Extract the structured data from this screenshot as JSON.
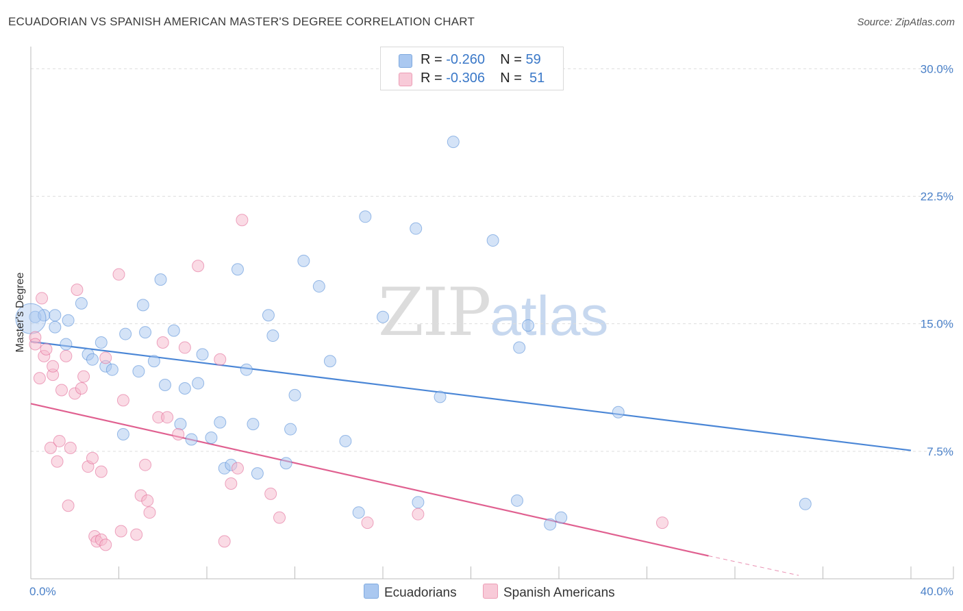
{
  "title": "ECUADORIAN VS SPANISH AMERICAN MASTER'S DEGREE CORRELATION CHART",
  "source": "Source: ZipAtlas.com",
  "watermark": {
    "zip": "ZIP",
    "atlas": "atlas"
  },
  "legend": {
    "rows": [
      {
        "r_label": "R =",
        "r_value": "-0.260",
        "n_label": "N =",
        "n_value": "59",
        "color": "#aac8f0"
      },
      {
        "r_label": "R =",
        "r_value": "-0.306",
        "n_label": "N =",
        "n_value": "51",
        "color": "#f5b8cb"
      }
    ]
  },
  "bottom_legend": [
    {
      "label": "Ecuadorians",
      "color": "#aac8f0"
    },
    {
      "label": "Spanish Americans",
      "color": "#f5b8cb"
    }
  ],
  "chart_data": {
    "type": "scatter",
    "title": "ECUADORIAN VS SPANISH AMERICAN MASTER'S DEGREE CORRELATION CHART",
    "xlabel": "",
    "ylabel": "Master's Degree",
    "xlim": [
      0,
      40
    ],
    "ylim": [
      0,
      30.9
    ],
    "x_tick_labels": [
      "0.0%",
      "40.0%"
    ],
    "y_ticks": [
      7.5,
      15.0,
      22.5,
      30.0
    ],
    "y_tick_labels": [
      "7.5%",
      "15.0%",
      "22.5%",
      "30.0%"
    ],
    "grid": "horizontal dashed",
    "series": [
      {
        "name": "Ecuadorians",
        "color": "#4a86d6",
        "fill": "#aac8f0",
        "trend": {
          "x": [
            0,
            40
          ],
          "y": [
            13.95,
            7.55
          ]
        },
        "points": [
          [
            0.2,
            15.4
          ],
          [
            0.6,
            15.5
          ],
          [
            1.1,
            15.5
          ],
          [
            1.1,
            14.8
          ],
          [
            1.7,
            15.2
          ],
          [
            1.6,
            13.8
          ],
          [
            2.3,
            16.2
          ],
          [
            2.6,
            13.2
          ],
          [
            2.8,
            12.9
          ],
          [
            3.2,
            13.9
          ],
          [
            3.4,
            12.5
          ],
          [
            3.7,
            12.3
          ],
          [
            4.3,
            14.4
          ],
          [
            4.2,
            8.5
          ],
          [
            4.9,
            12.2
          ],
          [
            5.1,
            16.1
          ],
          [
            5.2,
            14.5
          ],
          [
            5.6,
            12.8
          ],
          [
            5.9,
            17.6
          ],
          [
            6.1,
            11.4
          ],
          [
            6.5,
            14.6
          ],
          [
            6.8,
            9.1
          ],
          [
            7.0,
            11.2
          ],
          [
            7.3,
            8.2
          ],
          [
            7.6,
            11.5
          ],
          [
            7.8,
            13.2
          ],
          [
            8.2,
            8.3
          ],
          [
            8.6,
            9.2
          ],
          [
            8.8,
            6.5
          ],
          [
            9.1,
            6.7
          ],
          [
            9.4,
            18.2
          ],
          [
            9.8,
            12.3
          ],
          [
            10.1,
            9.1
          ],
          [
            10.3,
            6.2
          ],
          [
            10.8,
            15.5
          ],
          [
            11.0,
            14.3
          ],
          [
            11.6,
            6.8
          ],
          [
            11.8,
            8.8
          ],
          [
            12.0,
            10.8
          ],
          [
            12.4,
            18.7
          ],
          [
            13.1,
            17.2
          ],
          [
            13.6,
            12.8
          ],
          [
            14.3,
            8.1
          ],
          [
            14.9,
            3.9
          ],
          [
            15.2,
            21.3
          ],
          [
            16.0,
            15.4
          ],
          [
            17.5,
            20.6
          ],
          [
            17.6,
            4.5
          ],
          [
            18.6,
            10.7
          ],
          [
            19.2,
            25.7
          ],
          [
            21.0,
            19.9
          ],
          [
            22.1,
            4.6
          ],
          [
            22.2,
            13.6
          ],
          [
            22.6,
            14.9
          ],
          [
            23.6,
            3.2
          ],
          [
            24.1,
            3.6
          ],
          [
            26.7,
            9.8
          ],
          [
            35.2,
            4.4
          ],
          [
            0.0,
            15.3
          ]
        ]
      },
      {
        "name": "Spanish Americans",
        "color": "#e06090",
        "fill": "#f5b8cb",
        "trend": {
          "x": [
            0,
            30.8
          ],
          "y": [
            10.3,
            1.35
          ]
        },
        "trend_dashed": {
          "x": [
            30.8,
            34.9
          ],
          "y": [
            1.35,
            0.2
          ]
        },
        "points": [
          [
            0.2,
            14.2
          ],
          [
            0.2,
            13.8
          ],
          [
            0.4,
            11.8
          ],
          [
            0.5,
            16.5
          ],
          [
            0.6,
            13.1
          ],
          [
            0.7,
            13.5
          ],
          [
            0.9,
            7.7
          ],
          [
            1.0,
            12.0
          ],
          [
            1.0,
            12.5
          ],
          [
            1.2,
            6.9
          ],
          [
            1.3,
            8.1
          ],
          [
            1.4,
            11.1
          ],
          [
            1.6,
            13.1
          ],
          [
            1.7,
            4.3
          ],
          [
            1.8,
            7.7
          ],
          [
            2.0,
            10.9
          ],
          [
            2.1,
            17.0
          ],
          [
            2.3,
            11.2
          ],
          [
            2.4,
            11.9
          ],
          [
            2.6,
            6.6
          ],
          [
            2.8,
            7.1
          ],
          [
            2.9,
            2.5
          ],
          [
            3.0,
            2.2
          ],
          [
            3.2,
            2.3
          ],
          [
            3.2,
            6.3
          ],
          [
            3.4,
            2.0
          ],
          [
            3.4,
            13.0
          ],
          [
            4.0,
            17.9
          ],
          [
            4.1,
            2.8
          ],
          [
            4.2,
            10.5
          ],
          [
            4.8,
            2.6
          ],
          [
            5.0,
            4.9
          ],
          [
            5.2,
            6.7
          ],
          [
            5.3,
            4.6
          ],
          [
            5.4,
            3.9
          ],
          [
            5.8,
            9.5
          ],
          [
            6.0,
            13.9
          ],
          [
            6.2,
            9.5
          ],
          [
            6.7,
            8.5
          ],
          [
            7.0,
            13.6
          ],
          [
            7.6,
            18.4
          ],
          [
            8.6,
            12.9
          ],
          [
            8.8,
            2.2
          ],
          [
            9.1,
            5.6
          ],
          [
            9.4,
            6.5
          ],
          [
            9.6,
            21.1
          ],
          [
            10.9,
            5.0
          ],
          [
            11.3,
            3.6
          ],
          [
            15.3,
            3.3
          ],
          [
            17.6,
            3.8
          ],
          [
            28.7,
            3.3
          ]
        ]
      }
    ]
  }
}
